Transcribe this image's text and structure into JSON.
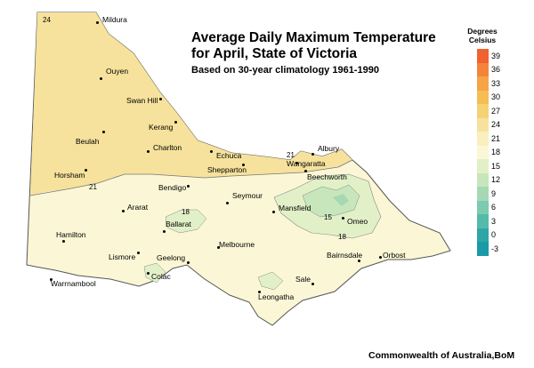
{
  "title_line1": "Average Daily Maximum Temperature",
  "title_line2": "for April, State of Victoria",
  "subtitle": "Based on 30-year climatology 1961-1990",
  "credit": "Commonwealth of Australia,BoM",
  "legend": {
    "title_line1": "Degrees",
    "title_line2": "Celsius",
    "labels": [
      "39",
      "36",
      "33",
      "30",
      "27",
      "24",
      "21",
      "18",
      "15",
      "12",
      "9",
      "6",
      "3",
      "0",
      "-3"
    ],
    "colors": [
      "#f0622e",
      "#f4843a",
      "#f5a446",
      "#f5bd52",
      "#f5d374",
      "#f6e29c",
      "#f9efbf",
      "#fbf7d6",
      "#e2f0c8",
      "#c8e6bc",
      "#a6d8b4",
      "#7ccab0",
      "#54baaa",
      "#2ea6a6",
      "#1a9aa8"
    ]
  },
  "towns": {
    "mildura": "Mildura",
    "ouyen": "Ouyen",
    "swan_hill": "Swan Hill",
    "kerang": "Kerang",
    "beulah": "Beulah",
    "charlton": "Charlton",
    "echuca": "Echuca",
    "albury": "Albury",
    "wangaratta": "Wangaratta",
    "shepparton": "Shepparton",
    "beechworth": "Beechworth",
    "horsham": "Horsham",
    "bendigo": "Bendigo",
    "seymour": "Seymour",
    "ararat": "Ararat",
    "mansfield": "Mansfield",
    "ballarat": "Ballarat",
    "omeo": "Omeo",
    "hamilton": "Hamilton",
    "melbourne": "Melbourne",
    "lismore": "Lismore",
    "geelong": "Geelong",
    "bairnsdale": "Bairnsdale",
    "orbost": "Orbost",
    "colac": "Colac",
    "sale": "Sale",
    "warrnambool": "Warrnambool",
    "leongatha": "Leongatha"
  },
  "isotherms": {
    "mildura": "24",
    "horsham": "21",
    "wangaratta": "21",
    "ballarat": "18",
    "omeo_15": "15",
    "omeo_18": "18"
  }
}
